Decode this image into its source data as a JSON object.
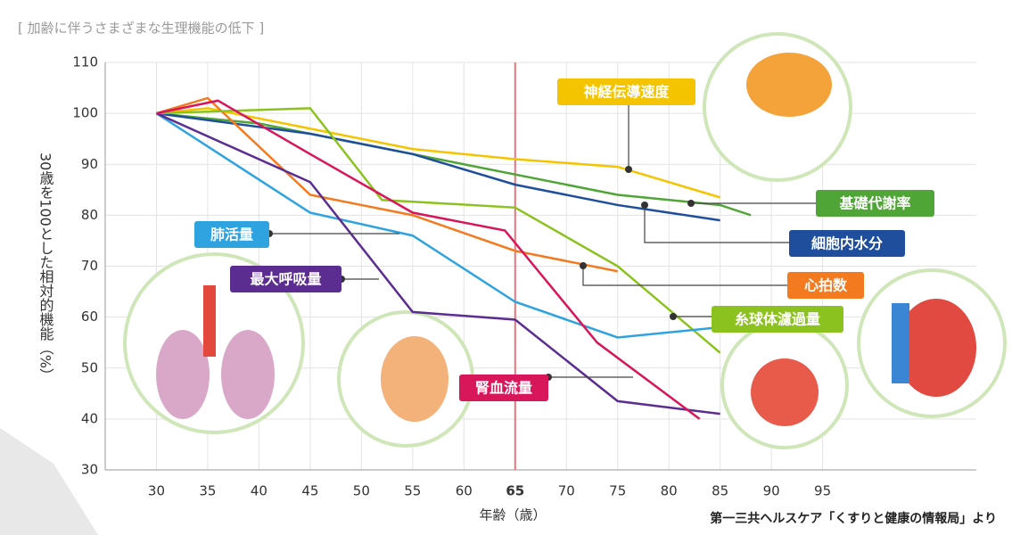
{
  "chart_data": {
    "type": "line",
    "title": "[ 加齢に伴うさまざまな生理機能の低下 ]",
    "x_label": "年齢（歳）",
    "y_label": "30歳を100とした相対的機能（%）",
    "source": "第一三共ヘルスケア「くすりと健康の情報局」より",
    "xlim": [
      25,
      110
    ],
    "ylim": [
      30,
      110
    ],
    "xticks": [
      30,
      35,
      40,
      45,
      50,
      55,
      60,
      65,
      70,
      75,
      80,
      85,
      90,
      95
    ],
    "yticks": [
      30,
      40,
      50,
      60,
      70,
      80,
      90,
      100,
      110
    ],
    "grid": true,
    "reference_x": 65,
    "reference_color": "#e8737a",
    "series": [
      {
        "name": "神経伝導速度",
        "color": "#f5c400",
        "x": [
          30,
          35,
          45,
          55,
          65,
          75,
          85
        ],
        "values": [
          100,
          101,
          97,
          93,
          91,
          89.5,
          83.5
        ]
      },
      {
        "name": "基礎代謝率",
        "color": "#4fa535",
        "x": [
          30,
          40,
          50,
          65,
          75,
          85,
          88
        ],
        "values": [
          100,
          98,
          94,
          88,
          84,
          82,
          80
        ]
      },
      {
        "name": "細胞内水分",
        "color": "#1f4e9c",
        "x": [
          30,
          45,
          55,
          65,
          75,
          85
        ],
        "values": [
          100,
          96,
          92,
          86,
          82,
          79
        ]
      },
      {
        "name": "心拍数",
        "color": "#f47a20",
        "x": [
          30,
          35,
          45,
          55,
          65,
          75
        ],
        "values": [
          100,
          103,
          84,
          80,
          73,
          69
        ]
      },
      {
        "name": "糸球体濾過量",
        "color": "#8cc21f",
        "x": [
          30,
          45,
          52,
          65,
          75,
          85
        ],
        "values": [
          100,
          101,
          83,
          81.5,
          70,
          53
        ]
      },
      {
        "name": "肺活量",
        "color": "#2ea3e0",
        "x": [
          30,
          45,
          55,
          65,
          75,
          85
        ],
        "values": [
          100,
          80.5,
          76,
          63,
          56,
          58
        ]
      },
      {
        "name": "最大呼吸量",
        "color": "#5c2d91",
        "x": [
          30,
          45,
          55,
          65,
          75,
          85
        ],
        "values": [
          100,
          86.5,
          61,
          59.5,
          43.5,
          41
        ]
      },
      {
        "name": "腎血流量",
        "color": "#d8175a",
        "x": [
          30,
          36,
          45,
          55,
          64,
          73,
          83
        ],
        "values": [
          100,
          102.5,
          92,
          80.5,
          77,
          55,
          40
        ]
      }
    ]
  }
}
